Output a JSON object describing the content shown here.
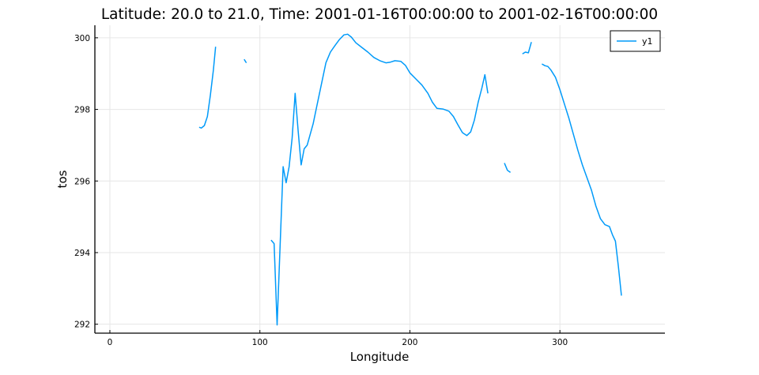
{
  "chart_data": {
    "type": "line",
    "title": "Latitude: 20.0 to 21.0, Time: 2001-01-16T00:00:00 to 2001-02-16T00:00:00",
    "xlabel": "Longitude",
    "ylabel": "tos",
    "xlim": [
      -10,
      370
    ],
    "ylim": [
      291.75,
      300.35
    ],
    "xticks": [
      0,
      100,
      200,
      300
    ],
    "yticks": [
      292,
      294,
      296,
      298,
      300
    ],
    "grid": true,
    "legend": {
      "position": "top-right",
      "entries": [
        "y1"
      ]
    },
    "colors": {
      "y1": "#009AF9"
    },
    "series": [
      {
        "name": "y1",
        "segments": [
          [
            [
              59.5,
              297.5
            ],
            [
              61,
              297.48
            ],
            [
              63,
              297.55
            ],
            [
              65,
              297.8
            ],
            [
              67,
              298.4
            ],
            [
              69,
              299.1
            ],
            [
              70.5,
              299.75
            ]
          ],
          [
            [
              89.5,
              299.4
            ],
            [
              91,
              299.3
            ]
          ],
          [
            [
              107.5,
              294.35
            ],
            [
              109.5,
              294.25
            ],
            [
              111.5,
              291.98
            ],
            [
              113.5,
              294.2
            ],
            [
              115.5,
              296.4
            ],
            [
              117.5,
              295.95
            ],
            [
              119.5,
              296.4
            ],
            [
              121.5,
              297.2
            ],
            [
              123.5,
              298.45
            ],
            [
              125.5,
              297.4
            ],
            [
              127.5,
              296.45
            ],
            [
              129.5,
              296.9
            ],
            [
              131.5,
              297.0
            ],
            [
              133.5,
              297.3
            ],
            [
              135.5,
              297.6
            ],
            [
              138,
              298.1
            ],
            [
              141,
              298.7
            ],
            [
              144,
              299.3
            ],
            [
              147,
              299.6
            ],
            [
              150,
              299.78
            ],
            [
              153,
              299.95
            ],
            [
              156,
              300.08
            ],
            [
              158.5,
              300.1
            ],
            [
              161,
              300.02
            ],
            [
              164,
              299.86
            ],
            [
              168,
              299.73
            ],
            [
              172,
              299.6
            ],
            [
              176,
              299.45
            ],
            [
              180,
              299.36
            ],
            [
              184,
              299.3
            ],
            [
              187,
              299.32
            ],
            [
              190,
              299.36
            ],
            [
              194,
              299.34
            ],
            [
              197,
              299.23
            ],
            [
              200,
              299.02
            ],
            [
              204,
              298.85
            ],
            [
              208,
              298.68
            ],
            [
              212,
              298.45
            ],
            [
              215,
              298.2
            ],
            [
              218,
              298.03
            ],
            [
              222,
              298.01
            ],
            [
              226,
              297.95
            ],
            [
              229,
              297.8
            ],
            [
              232,
              297.57
            ],
            [
              235,
              297.35
            ],
            [
              238,
              297.27
            ],
            [
              240.5,
              297.37
            ],
            [
              243,
              297.7
            ],
            [
              245.5,
              298.2
            ],
            [
              248,
              298.6
            ],
            [
              250,
              298.97
            ],
            [
              252,
              298.45
            ]
          ],
          [
            [
              263,
              296.5
            ],
            [
              265,
              296.3
            ],
            [
              267,
              296.24
            ]
          ],
          [
            [
              275,
              299.55
            ],
            [
              277,
              299.6
            ],
            [
              279,
              299.58
            ],
            [
              281,
              299.88
            ]
          ],
          [
            [
              288,
              299.27
            ],
            [
              290,
              299.22
            ],
            [
              292,
              299.2
            ],
            [
              294,
              299.1
            ],
            [
              297,
              298.9
            ],
            [
              300,
              298.55
            ],
            [
              303,
              298.15
            ],
            [
              306,
              297.75
            ],
            [
              309,
              297.3
            ],
            [
              312,
              296.85
            ],
            [
              315,
              296.45
            ],
            [
              318,
              296.1
            ],
            [
              321,
              295.75
            ],
            [
              324,
              295.3
            ],
            [
              327,
              294.95
            ],
            [
              330,
              294.78
            ],
            [
              333,
              294.73
            ],
            [
              335,
              294.5
            ],
            [
              337,
              294.32
            ],
            [
              339,
              293.6
            ],
            [
              341,
              292.8
            ]
          ]
        ]
      }
    ]
  }
}
